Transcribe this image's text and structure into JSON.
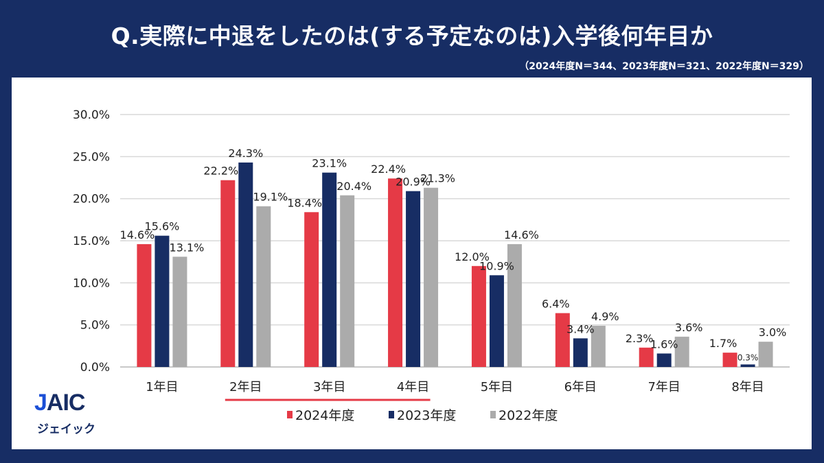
{
  "header": {
    "title": "Q.実際に中退をしたのは(する予定なのは)入学後何年目か",
    "sample_note": "（2024年度N＝344、2023年度N＝321、2022年度N＝329）"
  },
  "logo": {
    "brand": "JAIC",
    "brand_prefix": "J",
    "brand_rest": "AIC",
    "kana": "ジェイック"
  },
  "chart_data": {
    "type": "bar",
    "title": "Q.実際に中退をしたのは(する予定なのは)入学後何年目か",
    "xlabel": "",
    "ylabel": "",
    "categories": [
      "1年目",
      "2年目",
      "3年目",
      "4年目",
      "5年目",
      "6年目",
      "7年目",
      "8年目"
    ],
    "series": [
      {
        "name": "2024年度",
        "color": "#e53a46",
        "values": [
          14.6,
          22.2,
          18.4,
          22.4,
          12.0,
          6.4,
          2.3,
          1.7
        ]
      },
      {
        "name": "2023年度",
        "color": "#172d64",
        "values": [
          15.6,
          24.3,
          23.1,
          20.9,
          10.9,
          3.4,
          1.6,
          0.3
        ]
      },
      {
        "name": "2022年度",
        "color": "#ababab",
        "values": [
          13.1,
          19.1,
          20.4,
          21.3,
          14.6,
          4.9,
          3.6,
          3.0
        ]
      }
    ],
    "ylim": [
      0,
      30
    ],
    "yticks": [
      0,
      5,
      10,
      15,
      20,
      25,
      30
    ],
    "ytick_labels": [
      "0.0%",
      "5.0%",
      "10.0%",
      "15.0%",
      "20.0%",
      "25.0%",
      "30.0%"
    ],
    "value_format": "percent-1dp",
    "grid": true,
    "legend": {
      "placement": "bottom",
      "entries": [
        "2024年度",
        "2023年度",
        "2022年度"
      ]
    },
    "annotations": [
      {
        "type": "underline",
        "from_category": "2年目",
        "to_category": "4年目",
        "color": "#e53a46"
      }
    ]
  }
}
